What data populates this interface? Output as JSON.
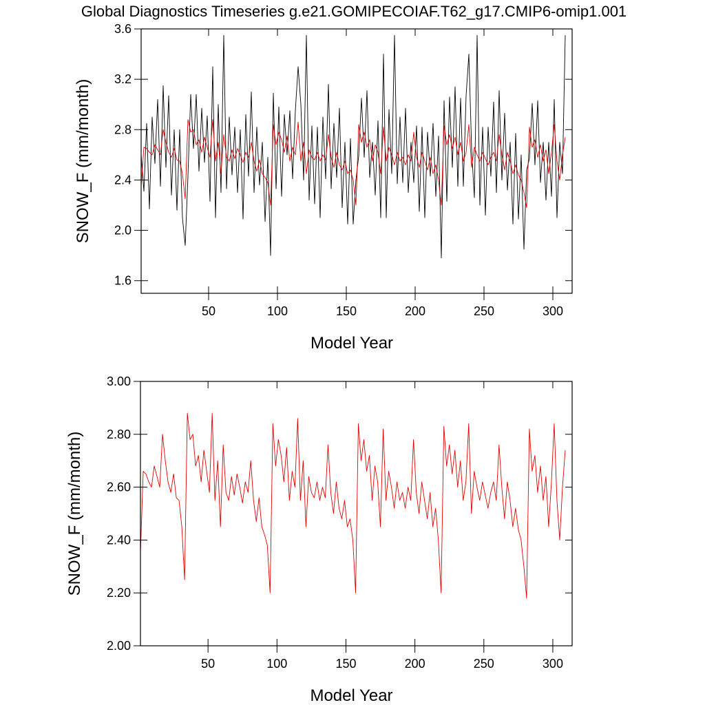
{
  "chart_data": [
    {
      "type": "line",
      "title": "Global Diagnostics Timeseries g.e21.GOMIPECOIAF.T62_g17.CMIP6-omip1.001",
      "xlabel": "Model Year",
      "ylabel": "SNOW_F (mm/month)",
      "xlim": [
        1,
        314
      ],
      "xticks": [
        50,
        100,
        150,
        200,
        250,
        300
      ],
      "ylim": [
        1.5,
        3.6
      ],
      "yticks": [
        1.6,
        {
          "value": 2,
          "label": "2.0"
        },
        2.4,
        2.8,
        3.2,
        3.6
      ],
      "x": [
        1,
        3,
        5,
        7,
        9,
        11,
        13,
        15,
        17,
        19,
        21,
        23,
        25,
        27,
        29,
        31,
        33,
        35,
        37,
        39,
        41,
        43,
        45,
        47,
        49,
        51,
        53,
        55,
        57,
        59,
        61,
        63,
        65,
        67,
        69,
        71,
        73,
        75,
        77,
        79,
        81,
        83,
        85,
        87,
        89,
        91,
        93,
        95,
        97,
        99,
        101,
        103,
        105,
        107,
        109,
        111,
        113,
        115,
        117,
        119,
        121,
        123,
        125,
        127,
        129,
        131,
        133,
        135,
        137,
        139,
        141,
        143,
        145,
        147,
        149,
        151,
        153,
        155,
        157,
        159,
        161,
        163,
        165,
        167,
        169,
        171,
        173,
        175,
        177,
        179,
        181,
        183,
        185,
        187,
        189,
        191,
        193,
        195,
        197,
        199,
        201,
        203,
        205,
        207,
        209,
        211,
        213,
        215,
        217,
        219,
        221,
        223,
        225,
        227,
        229,
        231,
        233,
        235,
        237,
        239,
        241,
        243,
        245,
        247,
        249,
        251,
        253,
        255,
        257,
        259,
        261,
        263,
        265,
        267,
        269,
        271,
        273,
        275,
        277,
        279,
        281,
        283,
        285,
        287,
        289,
        291,
        293,
        295,
        297,
        299,
        301,
        303,
        305,
        307,
        309
      ],
      "series": [
        {
          "color": "#000000",
          "values": [
            2.6,
            2.31,
            2.85,
            2.17,
            2.9,
            2.53,
            3.04,
            2.35,
            3.15,
            2.5,
            3.07,
            2.28,
            2.8,
            2.16,
            2.8,
            2.1,
            1.88,
            2.43,
            3.08,
            2.65,
            3.08,
            2.47,
            2.97,
            2.54,
            2.91,
            2.23,
            3.3,
            2.1,
            3.0,
            2.3,
            3.55,
            2.33,
            2.9,
            2.44,
            2.82,
            2.3,
            2.8,
            2.09,
            2.92,
            2.43,
            3.1,
            2.3,
            2.82,
            2.36,
            2.7,
            2.07,
            2.58,
            1.8,
            3.09,
            2.33,
            2.98,
            2.27,
            2.92,
            2.6,
            2.95,
            2.41,
            2.95,
            3.3,
            3.0,
            2.4,
            3.55,
            2.24,
            2.83,
            2.21,
            2.82,
            2.1,
            2.9,
            2.41,
            3.16,
            2.33,
            2.85,
            2.42,
            2.97,
            2.18,
            2.7,
            2.05,
            2.73,
            2.05,
            2.4,
            2.59,
            3.05,
            2.58,
            3.11,
            2.42,
            2.7,
            2.28,
            2.87,
            2.1,
            3.4,
            2.1,
            2.96,
            2.45,
            3.55,
            2.37,
            2.9,
            2.38,
            2.97,
            2.3,
            2.7,
            2.38,
            2.83,
            2.15,
            2.82,
            2.1,
            2.78,
            2.43,
            2.85,
            2.27,
            2.75,
            1.78,
            3.03,
            2.23,
            3.06,
            2.5,
            3.14,
            2.35,
            3.05,
            2.35,
            3.07,
            3.4,
            2.65,
            2.26,
            3.55,
            2.2,
            2.82,
            2.12,
            2.82,
            2.43,
            3.02,
            2.3,
            3.11,
            2.4,
            2.93,
            2.32,
            2.7,
            2.05,
            2.77,
            2.09,
            2.6,
            1.85,
            2.48,
            2.57,
            3.01,
            2.52,
            3.03,
            2.38,
            2.7,
            2.24,
            2.7,
            2.27,
            3.04,
            2.1,
            2.7,
            2.45,
            3.55
          ]
        },
        {
          "color": "#e00000",
          "values": [
            2.35,
            2.66,
            2.65,
            2.62,
            2.6,
            2.68,
            2.64,
            2.6,
            2.8,
            2.7,
            2.62,
            2.58,
            2.65,
            2.56,
            2.55,
            2.45,
            2.25,
            2.88,
            2.78,
            2.8,
            2.68,
            2.72,
            2.62,
            2.74,
            2.66,
            2.58,
            2.88,
            2.55,
            2.7,
            2.45,
            2.76,
            2.58,
            2.55,
            2.64,
            2.57,
            2.65,
            2.6,
            2.54,
            2.62,
            2.58,
            2.7,
            2.55,
            2.47,
            2.56,
            2.45,
            2.42,
            2.38,
            2.2,
            2.84,
            2.68,
            2.78,
            2.72,
            2.62,
            2.75,
            2.55,
            2.66,
            2.6,
            2.86,
            2.55,
            2.7,
            2.45,
            2.64,
            2.58,
            2.56,
            2.62,
            2.55,
            2.6,
            2.56,
            2.76,
            2.58,
            2.5,
            2.62,
            2.52,
            2.48,
            2.55,
            2.45,
            2.48,
            2.4,
            2.2,
            2.84,
            2.7,
            2.78,
            2.66,
            2.72,
            2.55,
            2.68,
            2.62,
            2.45,
            2.82,
            2.55,
            2.66,
            2.6,
            2.52,
            2.62,
            2.55,
            2.58,
            2.52,
            2.6,
            2.55,
            2.78,
            2.58,
            2.5,
            2.62,
            2.55,
            2.48,
            2.58,
            2.45,
            2.52,
            2.4,
            2.2,
            2.83,
            2.68,
            2.76,
            2.65,
            2.74,
            2.6,
            2.7,
            2.55,
            2.62,
            2.84,
            2.5,
            2.66,
            2.6,
            2.55,
            2.62,
            2.57,
            2.52,
            2.58,
            2.62,
            2.55,
            2.76,
            2.6,
            2.48,
            2.62,
            2.55,
            2.45,
            2.52,
            2.44,
            2.4,
            2.3,
            2.18,
            2.82,
            2.66,
            2.72,
            2.58,
            2.68,
            2.55,
            2.64,
            2.45,
            2.62,
            2.84,
            2.55,
            2.4,
            2.6,
            2.74
          ]
        }
      ]
    },
    {
      "type": "line",
      "xlabel": "Model Year",
      "ylabel": "SNOW_F (mm/month)",
      "xlim": [
        1,
        314
      ],
      "xticks": [
        50,
        100,
        150,
        200,
        250,
        300
      ],
      "ylim": [
        2,
        3
      ],
      "yticks": [
        {
          "value": 2,
          "label": "2.00"
        },
        {
          "value": 2.2,
          "label": "2.20"
        },
        {
          "value": 2.4,
          "label": "2.40"
        },
        {
          "value": 2.6,
          "label": "2.60"
        },
        {
          "value": 2.8,
          "label": "2.80"
        },
        {
          "value": 3,
          "label": "3.00"
        }
      ],
      "x": [
        1,
        3,
        5,
        7,
        9,
        11,
        13,
        15,
        17,
        19,
        21,
        23,
        25,
        27,
        29,
        31,
        33,
        35,
        37,
        39,
        41,
        43,
        45,
        47,
        49,
        51,
        53,
        55,
        57,
        59,
        61,
        63,
        65,
        67,
        69,
        71,
        73,
        75,
        77,
        79,
        81,
        83,
        85,
        87,
        89,
        91,
        93,
        95,
        97,
        99,
        101,
        103,
        105,
        107,
        109,
        111,
        113,
        115,
        117,
        119,
        121,
        123,
        125,
        127,
        129,
        131,
        133,
        135,
        137,
        139,
        141,
        143,
        145,
        147,
        149,
        151,
        153,
        155,
        157,
        159,
        161,
        163,
        165,
        167,
        169,
        171,
        173,
        175,
        177,
        179,
        181,
        183,
        185,
        187,
        189,
        191,
        193,
        195,
        197,
        199,
        201,
        203,
        205,
        207,
        209,
        211,
        213,
        215,
        217,
        219,
        221,
        223,
        225,
        227,
        229,
        231,
        233,
        235,
        237,
        239,
        241,
        243,
        245,
        247,
        249,
        251,
        253,
        255,
        257,
        259,
        261,
        263,
        265,
        267,
        269,
        271,
        273,
        275,
        277,
        279,
        281,
        283,
        285,
        287,
        289,
        291,
        293,
        295,
        297,
        299,
        301,
        303,
        305,
        307,
        309
      ],
      "series": [
        {
          "color": "#e00000",
          "values": [
            2.35,
            2.66,
            2.65,
            2.62,
            2.6,
            2.68,
            2.64,
            2.6,
            2.8,
            2.7,
            2.62,
            2.58,
            2.65,
            2.56,
            2.55,
            2.45,
            2.25,
            2.88,
            2.78,
            2.8,
            2.68,
            2.72,
            2.62,
            2.74,
            2.66,
            2.58,
            2.88,
            2.55,
            2.7,
            2.45,
            2.76,
            2.58,
            2.55,
            2.64,
            2.57,
            2.65,
            2.6,
            2.54,
            2.62,
            2.58,
            2.7,
            2.55,
            2.47,
            2.56,
            2.45,
            2.42,
            2.38,
            2.2,
            2.84,
            2.68,
            2.78,
            2.72,
            2.62,
            2.75,
            2.55,
            2.66,
            2.6,
            2.86,
            2.55,
            2.7,
            2.45,
            2.64,
            2.58,
            2.56,
            2.62,
            2.55,
            2.6,
            2.56,
            2.76,
            2.58,
            2.5,
            2.62,
            2.52,
            2.48,
            2.55,
            2.45,
            2.48,
            2.4,
            2.2,
            2.84,
            2.7,
            2.78,
            2.66,
            2.72,
            2.55,
            2.68,
            2.62,
            2.45,
            2.82,
            2.55,
            2.66,
            2.6,
            2.52,
            2.62,
            2.55,
            2.58,
            2.52,
            2.6,
            2.55,
            2.78,
            2.58,
            2.5,
            2.62,
            2.55,
            2.48,
            2.58,
            2.45,
            2.52,
            2.4,
            2.2,
            2.83,
            2.68,
            2.76,
            2.65,
            2.74,
            2.6,
            2.7,
            2.55,
            2.62,
            2.84,
            2.5,
            2.66,
            2.6,
            2.55,
            2.62,
            2.57,
            2.52,
            2.58,
            2.62,
            2.55,
            2.76,
            2.6,
            2.48,
            2.62,
            2.55,
            2.45,
            2.52,
            2.44,
            2.4,
            2.3,
            2.18,
            2.82,
            2.66,
            2.72,
            2.58,
            2.68,
            2.55,
            2.64,
            2.45,
            2.62,
            2.84,
            2.55,
            2.4,
            2.6,
            2.74
          ]
        }
      ]
    }
  ]
}
